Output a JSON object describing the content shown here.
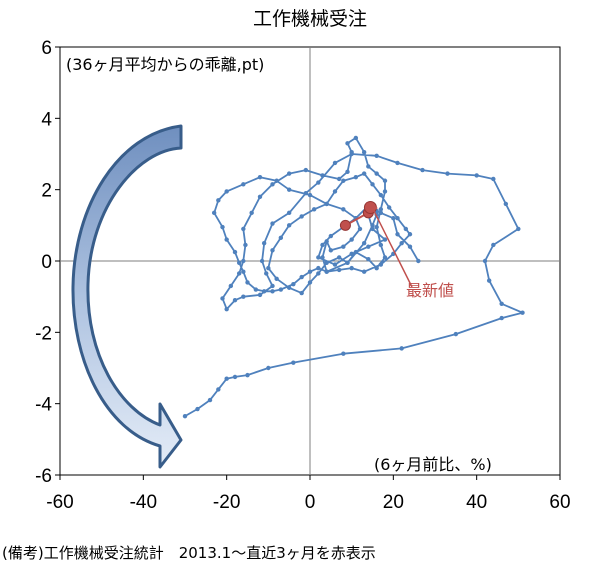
{
  "chart_data": {
    "type": "scatter",
    "title": "工作機械受注",
    "ylabel": "(36ヶ月平均からの乖離,pt)",
    "xlabel": "(6ヶ月前比、%)",
    "note": "(備考)工作機械受注統計　2013.1～直近3ヶ月を赤表示",
    "annotation": "最新値",
    "xlim": [
      -60,
      60
    ],
    "ylim": [
      -6,
      6
    ],
    "xticks": [
      "-60",
      "-40",
      "-20",
      "0",
      "20",
      "40",
      "60"
    ],
    "yticks": [
      "6",
      "4",
      "2",
      "0",
      "-2",
      "-4",
      "-6"
    ],
    "grid": false,
    "colors": {
      "line": "#4f81bd",
      "highlight": "#c0504d",
      "arrow_dark": "#385d8a",
      "arrow_light": "#dbe5f1"
    },
    "series": [
      {
        "points": [
          [
            -30,
            -4.35
          ],
          [
            -27,
            -4.15
          ],
          [
            -24,
            -3.9
          ],
          [
            -22,
            -3.6
          ],
          [
            -20,
            -3.3
          ],
          [
            -18,
            -3.25
          ],
          [
            -15,
            -3.2
          ],
          [
            -10,
            -3.0
          ],
          [
            -4,
            -2.85
          ],
          [
            8,
            -2.6
          ],
          [
            22,
            -2.45
          ],
          [
            35,
            -2.05
          ],
          [
            46,
            -1.6
          ],
          [
            51,
            -1.45
          ],
          [
            46,
            -1.2
          ],
          [
            43,
            -0.55
          ],
          [
            42,
            0.0
          ],
          [
            44,
            0.45
          ],
          [
            50,
            0.9
          ],
          [
            47,
            1.6
          ],
          [
            44,
            2.3
          ],
          [
            40,
            2.4
          ],
          [
            33,
            2.45
          ],
          [
            27,
            2.55
          ],
          [
            21,
            2.75
          ],
          [
            16,
            2.95
          ],
          [
            10,
            3.0
          ],
          [
            6,
            2.75
          ],
          [
            2,
            2.2
          ],
          [
            -1,
            1.9
          ],
          [
            -5,
            1.35
          ],
          [
            -9,
            1.05
          ],
          [
            -11,
            0.5
          ],
          [
            -11.5,
            0.0
          ],
          [
            -10.5,
            -0.35
          ],
          [
            -9,
            -0.7
          ],
          [
            -12,
            -0.95
          ],
          [
            -16,
            -1.0
          ],
          [
            -18,
            -1.1
          ],
          [
            -20,
            -1.35
          ],
          [
            -21,
            -1.05
          ],
          [
            -19,
            -0.7
          ],
          [
            -17,
            -0.35
          ],
          [
            -16,
            0.0
          ],
          [
            -15.5,
            0.45
          ],
          [
            -16,
            0.9
          ],
          [
            -14,
            1.35
          ],
          [
            -12,
            1.8
          ],
          [
            -9,
            2.15
          ],
          [
            -5,
            2.45
          ],
          [
            -1,
            2.55
          ],
          [
            3,
            2.4
          ],
          [
            7,
            2.3
          ],
          [
            9,
            2.5
          ],
          [
            10,
            3.05
          ],
          [
            9,
            3.3
          ],
          [
            11,
            3.45
          ],
          [
            13,
            3.05
          ],
          [
            14,
            2.65
          ],
          [
            16,
            2.45
          ],
          [
            18,
            2.25
          ],
          [
            18,
            1.95
          ],
          [
            17,
            1.45
          ],
          [
            16,
            0.95
          ],
          [
            17,
            0.45
          ],
          [
            18,
            0.1
          ],
          [
            16,
            -0.2
          ],
          [
            14,
            0.05
          ],
          [
            11,
            0.25
          ],
          [
            9,
            -0.05
          ],
          [
            7,
            0.1
          ],
          [
            4,
            -0.05
          ],
          [
            2,
            -0.35
          ],
          [
            0,
            -0.6
          ],
          [
            -2,
            -0.9
          ],
          [
            -5,
            -0.75
          ],
          [
            -8,
            -0.5
          ],
          [
            -10,
            -0.2
          ],
          [
            -9,
            0.3
          ],
          [
            -7,
            0.65
          ],
          [
            -5,
            1.0
          ],
          [
            -2,
            1.25
          ],
          [
            1,
            1.45
          ],
          [
            4,
            1.6
          ],
          [
            6,
            1.95
          ],
          [
            8,
            2.25
          ],
          [
            11,
            2.35
          ],
          [
            13,
            2.45
          ],
          [
            15,
            2.15
          ],
          [
            17,
            1.85
          ],
          [
            19,
            1.5
          ],
          [
            21,
            1.2
          ],
          [
            23,
            0.9
          ],
          [
            24,
            0.75
          ],
          [
            22,
            0.5
          ],
          [
            20,
            0.2
          ],
          [
            17,
            -0.1
          ],
          [
            13,
            -0.3
          ],
          [
            10,
            -0.2
          ],
          [
            7,
            -0.25
          ],
          [
            4,
            -0.3
          ],
          [
            2,
            -0.2
          ],
          [
            0,
            -0.3
          ],
          [
            -2,
            -0.45
          ],
          [
            -4,
            -0.65
          ],
          [
            -7,
            -0.8
          ],
          [
            -9,
            -0.85
          ],
          [
            -11,
            -0.85
          ],
          [
            -13,
            -0.8
          ],
          [
            -15,
            -0.6
          ],
          [
            -16,
            -0.3
          ],
          [
            -17,
            -0.05
          ],
          [
            -18,
            0.25
          ],
          [
            -20,
            0.6
          ],
          [
            -21,
            0.95
          ],
          [
            -23,
            1.35
          ],
          [
            -22,
            1.7
          ],
          [
            -20,
            1.95
          ],
          [
            -16,
            2.15
          ],
          [
            -12,
            2.35
          ],
          [
            -8,
            2.25
          ],
          [
            -5,
            2.0
          ],
          [
            0,
            1.85
          ],
          [
            4,
            1.6
          ],
          [
            8,
            1.45
          ],
          [
            11,
            1.2
          ],
          [
            12,
            0.9
          ],
          [
            10,
            0.6
          ],
          [
            8,
            0.4
          ],
          [
            5,
            0.3
          ],
          [
            4,
            0.55
          ],
          [
            3,
            0.1
          ],
          [
            4,
            -0.3
          ],
          [
            9,
            -0.05
          ],
          [
            13,
            0.5
          ],
          [
            15,
            1.0
          ],
          [
            16,
            1.3
          ],
          [
            14,
            1.55
          ],
          [
            11,
            1.2
          ],
          [
            8,
            0.95
          ],
          [
            5,
            0.7
          ],
          [
            3,
            0.45
          ],
          [
            2,
            0.1
          ],
          [
            6,
            -0.1
          ],
          [
            10,
            0.2
          ],
          [
            14,
            0.4
          ],
          [
            18,
            0.6
          ],
          [
            15,
            0.9
          ],
          [
            14,
            1.3
          ],
          [
            15,
            1.5
          ],
          [
            16,
            1.4
          ],
          [
            17,
            1.35
          ],
          [
            20,
            1.2
          ],
          [
            21,
            0.75
          ],
          [
            24,
            0.4
          ],
          [
            26,
            0.0
          ]
        ]
      },
      {
        "name": "直近3ヶ月",
        "points": [
          [
            8.5,
            1.0
          ],
          [
            14,
            1.35
          ],
          [
            14.5,
            1.5
          ]
        ]
      }
    ]
  }
}
